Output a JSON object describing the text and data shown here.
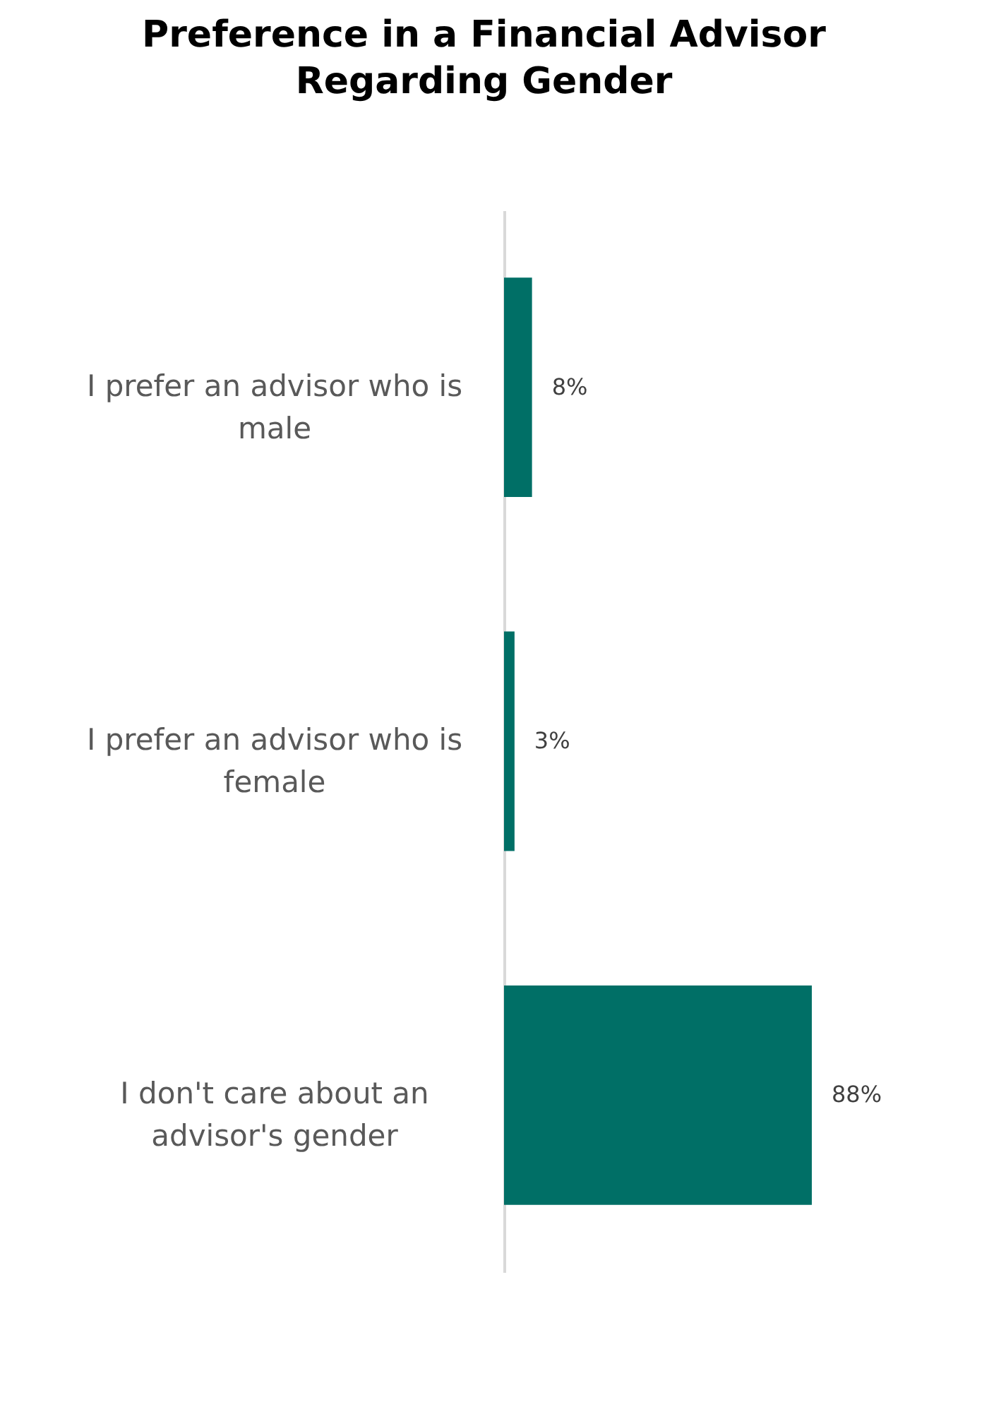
{
  "chart_data": {
    "type": "bar",
    "orientation": "horizontal",
    "title": "Preference in a Financial Advisor Regarding Gender",
    "categories": [
      "I prefer an advisor who is male",
      "I prefer an advisor who is female",
      "I don't care about an advisor's gender"
    ],
    "values": [
      8,
      3,
      88
    ],
    "value_labels": [
      "8%",
      "3%",
      "88%"
    ],
    "color": "#006f66"
  }
}
